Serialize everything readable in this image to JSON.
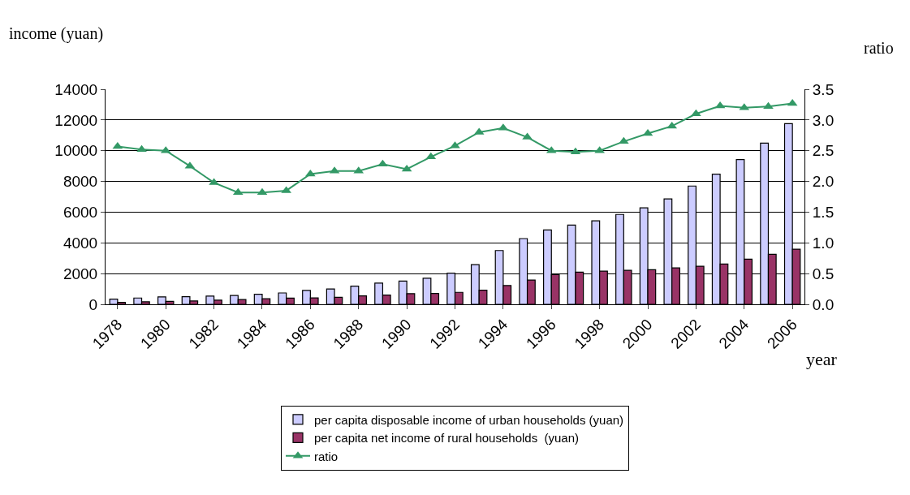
{
  "chart_data": {
    "type": "bar",
    "ylabel": "income (yuan)",
    "y2label": "ratio",
    "xlabel": "year",
    "categories": [
      "1978",
      null,
      "1980",
      null,
      "1982",
      null,
      "1984",
      null,
      "1986",
      null,
      "1988",
      null,
      "1990",
      null,
      "1992",
      null,
      "1994",
      null,
      "1996",
      null,
      "1998",
      null,
      "2000",
      null,
      "2002",
      null,
      "2004",
      null,
      "2006"
    ],
    "series": [
      {
        "name": "per capita disposable income of urban households (yuan)",
        "color": "#ccccff",
        "values": [
          340,
          410,
          480,
          500,
          540,
          570,
          650,
          740,
          900,
          1000,
          1180,
          1380,
          1510,
          1700,
          2030,
          2580,
          3500,
          4280,
          4840,
          5160,
          5430,
          5850,
          6280,
          6860,
          7700,
          8470,
          9420,
          10490,
          11760
        ]
      },
      {
        "name": "per capita net income of rural households  (yuan)",
        "color": "#993366",
        "values": [
          130,
          160,
          190,
          220,
          270,
          310,
          360,
          400,
          420,
          460,
          550,
          600,
          690,
          710,
          780,
          920,
          1220,
          1580,
          1930,
          2090,
          2160,
          2210,
          2250,
          2370,
          2480,
          2620,
          2940,
          3260,
          3590
        ]
      },
      {
        "name": "ratio",
        "type": "line",
        "axis": "y2",
        "color": "#339966",
        "marker": "triangle",
        "values": [
          2.57,
          2.52,
          2.5,
          2.25,
          1.98,
          1.82,
          1.82,
          1.85,
          2.12,
          2.17,
          2.17,
          2.28,
          2.2,
          2.4,
          2.58,
          2.8,
          2.87,
          2.72,
          2.5,
          2.48,
          2.5,
          2.65,
          2.78,
          2.9,
          3.1,
          3.23,
          3.2,
          3.22,
          3.27
        ]
      }
    ],
    "ylim": [
      0,
      14000
    ],
    "yticks": [
      0,
      2000,
      4000,
      6000,
      8000,
      10000,
      12000,
      14000
    ],
    "y2lim": [
      0,
      3.5
    ],
    "y2ticks": [
      {
        "value": 0,
        "label": "0.0"
      },
      {
        "value": 0.5,
        "label": "0.5"
      },
      {
        "value": 1,
        "label": "1.0"
      },
      {
        "value": 1.5,
        "label": "1.5"
      },
      {
        "value": 2,
        "label": "2.0"
      },
      {
        "value": 2.5,
        "label": "2.5"
      },
      {
        "value": 3,
        "label": "3.0"
      },
      {
        "value": 3.5,
        "label": "3.5"
      }
    ],
    "grid": "y",
    "legend": "bottom"
  }
}
